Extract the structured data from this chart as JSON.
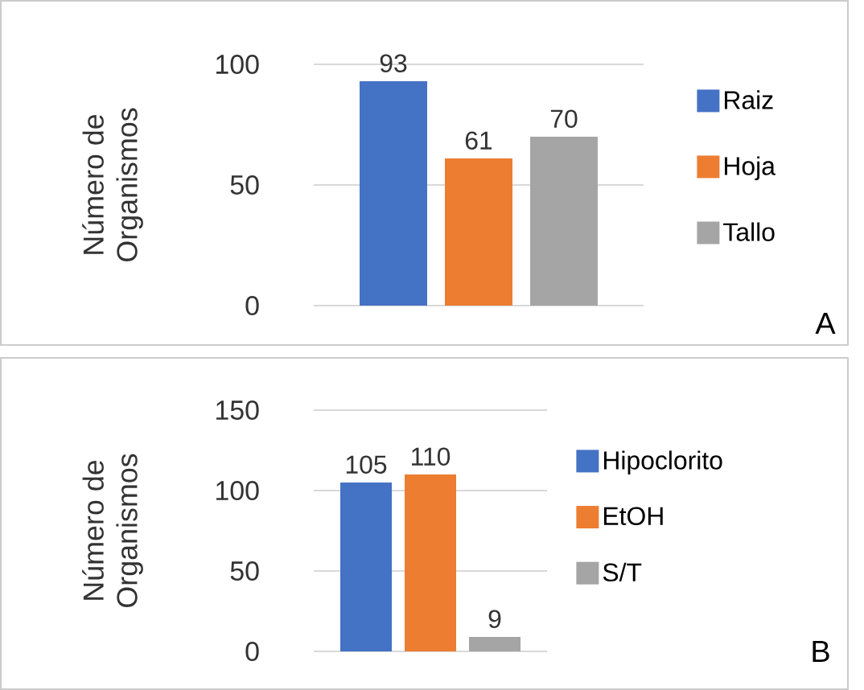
{
  "chart_data": [
    {
      "type": "bar",
      "ylabel": "Número de Organismos",
      "categories": [
        null
      ],
      "series": [
        {
          "name": "Raiz",
          "color": "#4472c4",
          "values": [
            93
          ],
          "value_labels": [
            "93"
          ]
        },
        {
          "name": "Hoja",
          "color": "#ed7d31",
          "values": [
            61
          ],
          "value_labels": [
            "61"
          ]
        },
        {
          "name": "Tallo",
          "color": "#a5a5a5",
          "values": [
            70
          ],
          "value_labels": [
            "70"
          ]
        }
      ],
      "ylim": [
        0,
        100
      ],
      "yticks": [
        0,
        50,
        100
      ],
      "grid": "y",
      "legend": "right",
      "annotations": [
        "A"
      ]
    },
    {
      "type": "bar",
      "ylabel": "Número de Organismos",
      "categories": [
        null
      ],
      "series": [
        {
          "name": "Hipoclorito",
          "color": "#4472c4",
          "values": [
            105
          ],
          "value_labels": [
            "105"
          ]
        },
        {
          "name": "EtOH",
          "color": "#ed7d31",
          "values": [
            110
          ],
          "value_labels": [
            "110"
          ]
        },
        {
          "name": "S/T",
          "color": "#a5a5a5",
          "values": [
            9
          ],
          "value_labels": [
            "9"
          ]
        }
      ],
      "ylim": [
        0,
        150
      ],
      "yticks": [
        0,
        50,
        100,
        150
      ],
      "grid": "y",
      "legend": "right",
      "annotations": [
        "B"
      ]
    }
  ]
}
